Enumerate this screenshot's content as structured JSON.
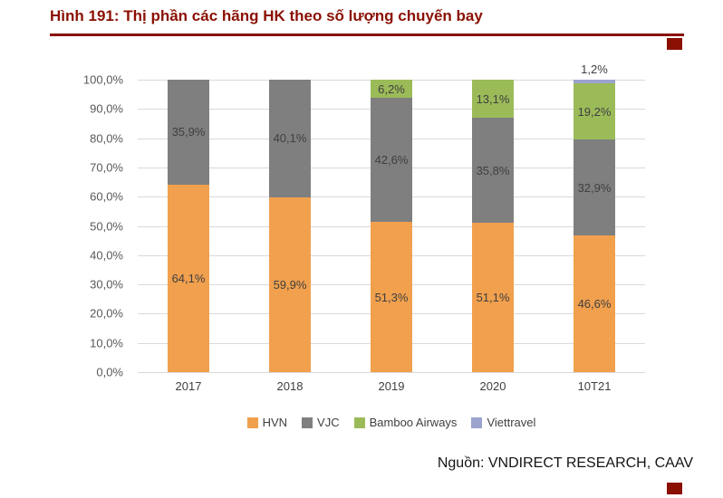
{
  "page": {
    "title": "Hình 191: Thị phần các hãng HK theo số lượng chuyến bay",
    "source": "Nguồn: VNDIRECT RESEARCH, CAAV",
    "accent_color": "#8A1002"
  },
  "chart_data": {
    "type": "bar",
    "stacked": true,
    "title": "Thị phần các hãng HK theo số lượng chuyến bay",
    "categories": [
      "2017",
      "2018",
      "2019",
      "2020",
      "10T21"
    ],
    "series": [
      {
        "name": "HVN",
        "color": "#F1A04E",
        "values": [
          64.1,
          59.9,
          51.3,
          51.1,
          46.6
        ],
        "labels": [
          "64,1%",
          "59,9%",
          "51,3%",
          "51,1%",
          "46,6%"
        ]
      },
      {
        "name": "VJC",
        "color": "#7F7F7F",
        "values": [
          35.9,
          40.1,
          42.6,
          35.8,
          32.9
        ],
        "labels": [
          "35,9%",
          "40,1%",
          "42,6%",
          "35,8%",
          "32,9%"
        ]
      },
      {
        "name": "Bamboo Airways",
        "color": "#9BBB59",
        "values": [
          0,
          0,
          6.2,
          13.1,
          19.2
        ],
        "labels": [
          "",
          "",
          "6,2%",
          "13,1%",
          "19,2%"
        ]
      },
      {
        "name": "Viettravel",
        "color": "#9BA3CE",
        "values": [
          0,
          0,
          0,
          0,
          1.2
        ],
        "labels": [
          "",
          "",
          "",
          "",
          "1,2%"
        ]
      }
    ],
    "y_ticks": [
      "100,0%",
      "90,0%",
      "80,0%",
      "70,0%",
      "60,0%",
      "50,0%",
      "40,0%",
      "30,0%",
      "20,0%",
      "10,0%",
      "0,0%"
    ],
    "ylim": [
      0,
      100
    ],
    "grid": true,
    "legend_position": "bottom"
  }
}
